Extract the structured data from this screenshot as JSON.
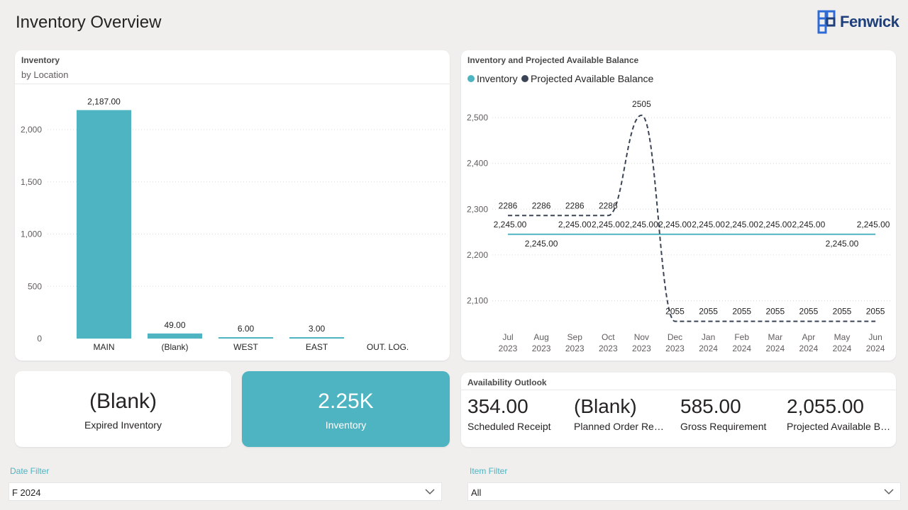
{
  "header": {
    "title": "Inventory Overview",
    "logo_text": "Fenwick"
  },
  "bar_card": {
    "title": "Inventory",
    "subtitle": "by Location"
  },
  "line_card": {
    "title": "Inventory and Projected Available Balance"
  },
  "chart_data": [
    {
      "type": "bar",
      "title": "Inventory",
      "subtitle": "by Location",
      "categories": [
        "MAIN",
        "(Blank)",
        "WEST",
        "EAST",
        "OUT. LOG."
      ],
      "values": [
        2187,
        49,
        6,
        3,
        0
      ],
      "data_labels": [
        "2,187.00",
        "49.00",
        "6.00",
        "3.00",
        ""
      ],
      "yticks": [
        "0",
        "500",
        "1,000",
        "1,500",
        "2,000"
      ],
      "ylim": [
        0,
        2200
      ],
      "color": "#4eb4c2",
      "grid": true
    },
    {
      "type": "line",
      "title": "Inventory and Projected Available Balance",
      "legend_position": "top-left",
      "categories": [
        {
          "month": "Jul",
          "year": "2023"
        },
        {
          "month": "Aug",
          "year": "2023"
        },
        {
          "month": "Sep",
          "year": "2023"
        },
        {
          "month": "Oct",
          "year": "2023"
        },
        {
          "month": "Nov",
          "year": "2023"
        },
        {
          "month": "Dec",
          "year": "2023"
        },
        {
          "month": "Jan",
          "year": "2024"
        },
        {
          "month": "Feb",
          "year": "2024"
        },
        {
          "month": "Mar",
          "year": "2024"
        },
        {
          "month": "Apr",
          "year": "2024"
        },
        {
          "month": "May",
          "year": "2024"
        },
        {
          "month": "Jun",
          "year": "2024"
        }
      ],
      "yticks": [
        "2,100",
        "2,200",
        "2,300",
        "2,400",
        "2,500"
      ],
      "ylim": [
        2055,
        2530
      ],
      "grid": true,
      "series": [
        {
          "name": "Inventory",
          "color": "#4eb4c2",
          "style": "solid",
          "values": [
            2245,
            2245,
            2245,
            2245,
            2245,
            2245,
            2245,
            2245,
            2245,
            2245,
            2245,
            2245
          ],
          "labels": [
            "2,245.00",
            "2,245.00",
            "2,245.00",
            "2,245.00",
            "2,245.00",
            "2,245.00",
            "2,245.00",
            "2,245.00",
            "2,245.00",
            "2,245.00",
            "2,245.00",
            "2,245.00"
          ]
        },
        {
          "name": "Projected Available Balance",
          "color": "#3b4556",
          "style": "dashed",
          "values": [
            2286,
            2286,
            2286,
            2286,
            2505,
            2055,
            2055,
            2055,
            2055,
            2055,
            2055,
            2055
          ],
          "labels": [
            "2286",
            "2286",
            "2286",
            "2286",
            "2505",
            "2055",
            "2055",
            "2055",
            "2055",
            "2055",
            "2055",
            "2055"
          ]
        }
      ]
    }
  ],
  "kpis": {
    "expired": {
      "value": "(Blank)",
      "label": "Expired Inventory"
    },
    "inventory": {
      "value": "2.25K",
      "label": "Inventory"
    }
  },
  "outlook": {
    "title": "Availability Outlook",
    "items": [
      {
        "value": "354.00",
        "label": "Scheduled Receipt"
      },
      {
        "value": "(Blank)",
        "label": "Planned Order Receipt"
      },
      {
        "value": "585.00",
        "label": "Gross Requirement"
      },
      {
        "value": "2,055.00",
        "label": "Projected Available Balance"
      }
    ]
  },
  "filters": {
    "date": {
      "label": "Date Filter",
      "value": "F 2024"
    },
    "item": {
      "label": "Item Filter",
      "value": "All"
    }
  }
}
